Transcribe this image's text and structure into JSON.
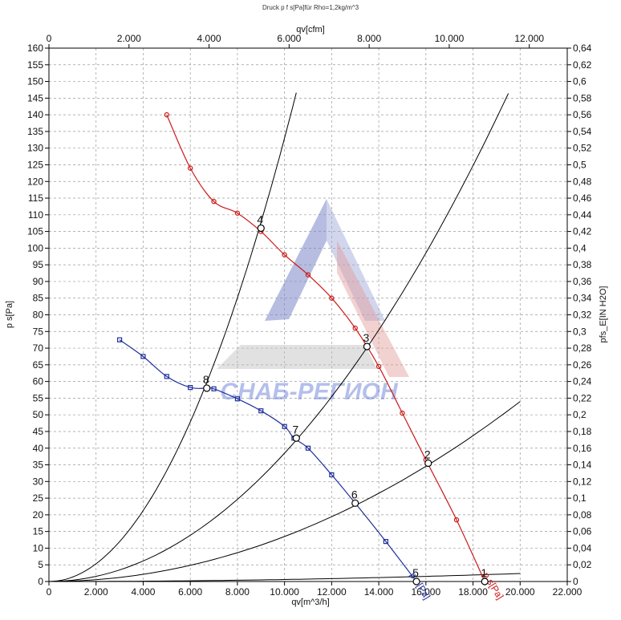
{
  "chart_data": {
    "type": "line",
    "title": "Druck p f s[Pa]für Rho=1,2kg/m^3",
    "xlabel": "qv[m^3/h]",
    "x2label": "qv[cfm]",
    "ylabel": "p s[Pa]",
    "y2label": "pfs_E[IN H2O]",
    "xlim": [
      0,
      22000
    ],
    "x2lim": [
      0,
      12948
    ],
    "ylim": [
      0,
      160
    ],
    "y2lim": [
      0,
      0.64
    ],
    "x_ticks": [
      {
        "v": 0,
        "label": "0"
      },
      {
        "v": 2000,
        "label": "2.000"
      },
      {
        "v": 4000,
        "label": "4.000"
      },
      {
        "v": 6000,
        "label": "6.000"
      },
      {
        "v": 8000,
        "label": "8.000"
      },
      {
        "v": 10000,
        "label": "10.000"
      },
      {
        "v": 12000,
        "label": "12.000"
      },
      {
        "v": 14000,
        "label": "14.000"
      },
      {
        "v": 16000,
        "label": "16.000"
      },
      {
        "v": 18000,
        "label": "18.000"
      },
      {
        "v": 20000,
        "label": "20.000"
      },
      {
        "v": 22000,
        "label": "22.000"
      }
    ],
    "x2_ticks": [
      {
        "v": 0,
        "label": "0"
      },
      {
        "v": 2000,
        "label": "2.000"
      },
      {
        "v": 4000,
        "label": "4.000"
      },
      {
        "v": 6000,
        "label": "6.000"
      },
      {
        "v": 8000,
        "label": "8.000"
      },
      {
        "v": 10000,
        "label": "10.000"
      },
      {
        "v": 12000,
        "label": "12.000"
      }
    ],
    "y_ticks": [
      0,
      5,
      10,
      15,
      20,
      25,
      30,
      35,
      40,
      45,
      50,
      55,
      60,
      65,
      70,
      75,
      80,
      85,
      90,
      95,
      100,
      105,
      110,
      115,
      120,
      125,
      130,
      135,
      140,
      145,
      150,
      155,
      160
    ],
    "y2_ticks": [
      "0",
      "0,02",
      "0,04",
      "0,06",
      "0,08",
      "0,1",
      "0,12",
      "0,14",
      "0,16",
      "0,18",
      "0,2",
      "0,22",
      "0,24",
      "0,26",
      "0,28",
      "0,3",
      "0,32",
      "0,34",
      "0,36",
      "0,38",
      "0,4",
      "0,42",
      "0,44",
      "0,46",
      "0,48",
      "0,5",
      "0,52",
      "0,54",
      "0,56",
      "0,58",
      "0,6",
      "0,62",
      "0,64"
    ],
    "grid": true,
    "series": [
      {
        "name": "p s[Pa]",
        "color": "#cc1a1a",
        "marker": "circle",
        "label_at": [
          18400,
          2
        ],
        "x": [
          5000,
          6000,
          7000,
          8000,
          9000,
          10000,
          11000,
          12000,
          13000,
          14000,
          15000,
          16000,
          17300,
          18500
        ],
        "y": [
          140,
          124,
          114,
          110.5,
          105,
          98,
          92,
          85,
          76,
          64.5,
          50.5,
          36.5,
          18.5,
          0
        ]
      },
      {
        "name": "p s[Pa]",
        "color": "#1f2f9c",
        "marker": "square",
        "label_at": [
          15300,
          2
        ],
        "x": [
          3000,
          4000,
          5000,
          6000,
          6700,
          7000,
          8000,
          9000,
          10000,
          10400,
          11000,
          12000,
          13000,
          14300,
          15600
        ],
        "y": [
          72.5,
          67.5,
          61.5,
          58.2,
          58,
          57.8,
          54.8,
          51.2,
          46.5,
          43,
          40,
          32,
          23.5,
          12,
          0
        ]
      }
    ],
    "system_curves": [
      {
        "k": 1.33e-06,
        "xmax": 10500
      },
      {
        "k": 3.85e-07,
        "xmax": 19500
      },
      {
        "k": 1.35e-07,
        "xmax": 20000
      },
      {
        "k": 6e-09,
        "xmax": 20000
      }
    ],
    "operating_points": [
      {
        "label": "1",
        "x": 18500,
        "y": 0
      },
      {
        "label": "2",
        "x": 16100,
        "y": 35.5
      },
      {
        "label": "3",
        "x": 13500,
        "y": 70.5
      },
      {
        "label": "4",
        "x": 9000,
        "y": 106
      },
      {
        "label": "5",
        "x": 15600,
        "y": 0
      },
      {
        "label": "6",
        "x": 13000,
        "y": 23.5
      },
      {
        "label": "7",
        "x": 10500,
        "y": 43
      },
      {
        "label": "8",
        "x": 6700,
        "y": 58
      }
    ]
  },
  "watermark_text": "СНАБ-РЕГИОН"
}
